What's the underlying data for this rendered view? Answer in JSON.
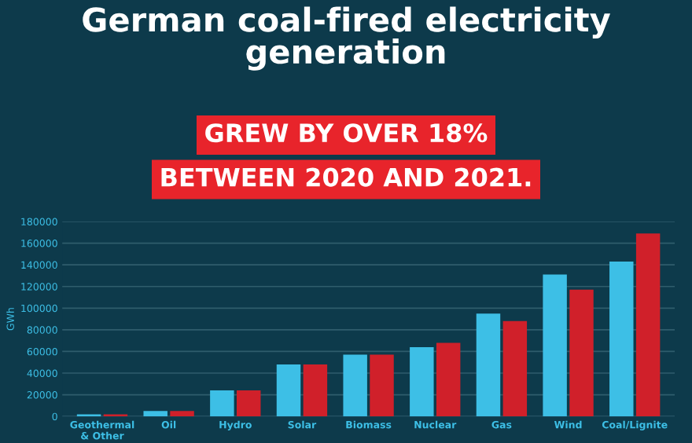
{
  "chart_data": {
    "type": "bar",
    "title": "German coal-fired electricity generation",
    "subtitle": "GREW BY OVER 18%\nBETWEEN 2020 AND 2021.",
    "ylabel": "GWh",
    "categories": [
      "Geothermal\n& Other",
      "Oil",
      "Hydro",
      "Solar",
      "Biomass",
      "Nuclear",
      "Gas",
      "Wind",
      "Coal/Lignite"
    ],
    "series": [
      {
        "color": "#3dbfe6",
        "values": [
          2000,
          5000,
          24000,
          48000,
          57000,
          64000,
          95000,
          131000,
          143000
        ]
      },
      {
        "color": "#d0202a",
        "values": [
          2000,
          5000,
          24000,
          48000,
          57000,
          68000,
          88000,
          117000,
          169000
        ]
      }
    ],
    "ylim": [
      0,
      180000
    ],
    "yticks": [
      0,
      20000,
      40000,
      60000,
      80000,
      100000,
      120000,
      140000,
      160000,
      180000
    ],
    "grid": "y",
    "legend": false
  }
}
